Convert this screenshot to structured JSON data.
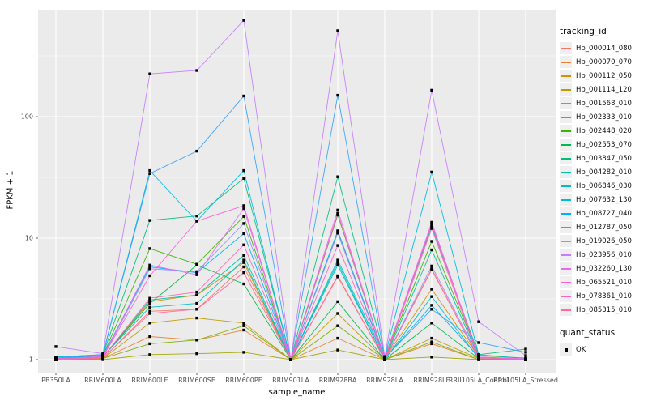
{
  "figure": {
    "background": "#FFFFFF",
    "panel_background": "#EBEBEB",
    "grid_color": "#FFFFFF",
    "tick_color": "#333333",
    "tick_label_color": "#4D4D4D",
    "marker_color": "#000000"
  },
  "chart_data": {
    "type": "line",
    "title": "",
    "xlabel": "sample_name",
    "ylabel": "FPKM + 1",
    "y_scale": "log10",
    "y_ticks": [
      1,
      10,
      100
    ],
    "y_minor_ticks": [
      3.162,
      31.62,
      316.2
    ],
    "ylim": [
      0.78,
      760
    ],
    "grid": "on",
    "legend_position": "right",
    "categories": [
      "PB350LA",
      "RRIM600LA",
      "RRIM600LE",
      "RRIM600SE",
      "RRIM600PE",
      "RRIM901LA",
      "RRIM928BA",
      "RRIM928LA",
      "RRIM928LE",
      "RRII105LA_Control",
      "RRII105LA_Stressed"
    ],
    "series": [
      {
        "name": "Hb_000014_080",
        "color": "#F8766D",
        "values": [
          1.0,
          1.02,
          2.5,
          2.6,
          5.8,
          1.0,
          4.8,
          1.0,
          5.6,
          1.02,
          1.0
        ]
      },
      {
        "name": "Hb_000070_070",
        "color": "#EA8331",
        "values": [
          1.0,
          1.02,
          1.55,
          1.45,
          1.75,
          1.0,
          1.5,
          1.0,
          1.35,
          1.0,
          1.0
        ]
      },
      {
        "name": "Hb_000112_050",
        "color": "#D89000",
        "values": [
          1.02,
          1.05,
          3.0,
          3.4,
          6.3,
          1.0,
          11.2,
          1.02,
          3.8,
          1.05,
          1.0
        ]
      },
      {
        "name": "Hb_001114_120",
        "color": "#C09B00",
        "values": [
          1.0,
          1.02,
          2.0,
          2.2,
          2.0,
          1.0,
          2.4,
          1.0,
          1.5,
          1.02,
          1.0
        ]
      },
      {
        "name": "Hb_001568_010",
        "color": "#A3A500",
        "values": [
          1.0,
          1.0,
          1.1,
          1.12,
          1.15,
          1.0,
          1.2,
          1.0,
          1.05,
          1.0,
          1.0
        ]
      },
      {
        "name": "Hb_002333_010",
        "color": "#7CAE00",
        "values": [
          1.0,
          1.02,
          1.35,
          1.45,
          1.9,
          1.0,
          1.9,
          1.0,
          1.4,
          1.0,
          1.0
        ]
      },
      {
        "name": "Hb_002448_020",
        "color": "#39B600",
        "values": [
          1.03,
          1.08,
          8.2,
          6.1,
          15.1,
          1.0,
          15.5,
          1.02,
          9.4,
          1.08,
          1.03
        ]
      },
      {
        "name": "Hb_002553_070",
        "color": "#00BB4E",
        "values": [
          1.0,
          1.05,
          2.9,
          6.0,
          4.2,
          1.0,
          3.0,
          1.0,
          2.0,
          1.02,
          1.0
        ]
      },
      {
        "name": "Hb_003847_050",
        "color": "#00BF7D",
        "values": [
          1.05,
          1.1,
          14.0,
          15.2,
          31.0,
          1.0,
          32.0,
          1.05,
          12.5,
          1.1,
          1.22
        ]
      },
      {
        "name": "Hb_004282_010",
        "color": "#00C1A3",
        "values": [
          1.0,
          1.05,
          3.1,
          3.4,
          7.2,
          1.0,
          6.3,
          1.0,
          8.0,
          1.05,
          1.0
        ]
      },
      {
        "name": "Hb_006846_030",
        "color": "#00BFC4",
        "values": [
          1.02,
          1.06,
          2.7,
          2.9,
          6.6,
          1.0,
          6.0,
          1.0,
          3.3,
          1.02,
          1.0
        ]
      },
      {
        "name": "Hb_007632_130",
        "color": "#00BAE0",
        "values": [
          1.05,
          1.1,
          36.0,
          13.8,
          36.0,
          1.0,
          6.6,
          1.05,
          35.0,
          1.1,
          1.02
        ]
      },
      {
        "name": "Hb_008727_040",
        "color": "#00B0F6",
        "values": [
          1.02,
          1.08,
          5.8,
          5.2,
          10.9,
          1.0,
          11.5,
          1.02,
          2.8,
          1.05,
          1.0
        ]
      },
      {
        "name": "Hb_012787_050",
        "color": "#35A2FF",
        "values": [
          1.03,
          1.1,
          34.0,
          52.0,
          148.0,
          1.0,
          150.0,
          1.03,
          2.6,
          1.38,
          1.15
        ]
      },
      {
        "name": "Hb_019026_050",
        "color": "#9590FF",
        "values": [
          1.0,
          1.05,
          5.6,
          5.3,
          13.2,
          1.0,
          11.0,
          1.0,
          5.9,
          1.05,
          1.0
        ]
      },
      {
        "name": "Hb_023956_010",
        "color": "#C77CFF",
        "values": [
          1.28,
          1.12,
          225,
          240,
          620,
          1.0,
          510,
          1.06,
          165,
          2.05,
          1.08
        ]
      },
      {
        "name": "Hb_032260_130",
        "color": "#E76BF3",
        "values": [
          1.02,
          1.06,
          6.0,
          5.0,
          17.5,
          1.0,
          17.0,
          1.02,
          13.5,
          1.05,
          1.02
        ]
      },
      {
        "name": "Hb_065521_010",
        "color": "#FA62DB",
        "values": [
          1.02,
          1.05,
          4.9,
          13.8,
          18.5,
          1.0,
          16.0,
          1.02,
          13.0,
          1.05,
          1.0
        ]
      },
      {
        "name": "Hb_078361_010",
        "color": "#FF62BC",
        "values": [
          1.0,
          1.04,
          3.2,
          3.6,
          8.8,
          1.0,
          8.7,
          1.0,
          12.0,
          1.04,
          1.0
        ]
      },
      {
        "name": "Hb_085315_010",
        "color": "#FF6A98",
        "values": [
          1.0,
          1.03,
          2.4,
          2.6,
          5.2,
          1.0,
          4.9,
          1.0,
          5.5,
          1.02,
          1.0
        ]
      }
    ],
    "legend": {
      "tracking_title": "tracking_id",
      "quant_title": "quant_status",
      "quant_items": [
        {
          "label": "OK",
          "marker": "black-square"
        }
      ]
    },
    "marker": {
      "shape": "square",
      "color": "#000000",
      "size": 3.4
    }
  }
}
